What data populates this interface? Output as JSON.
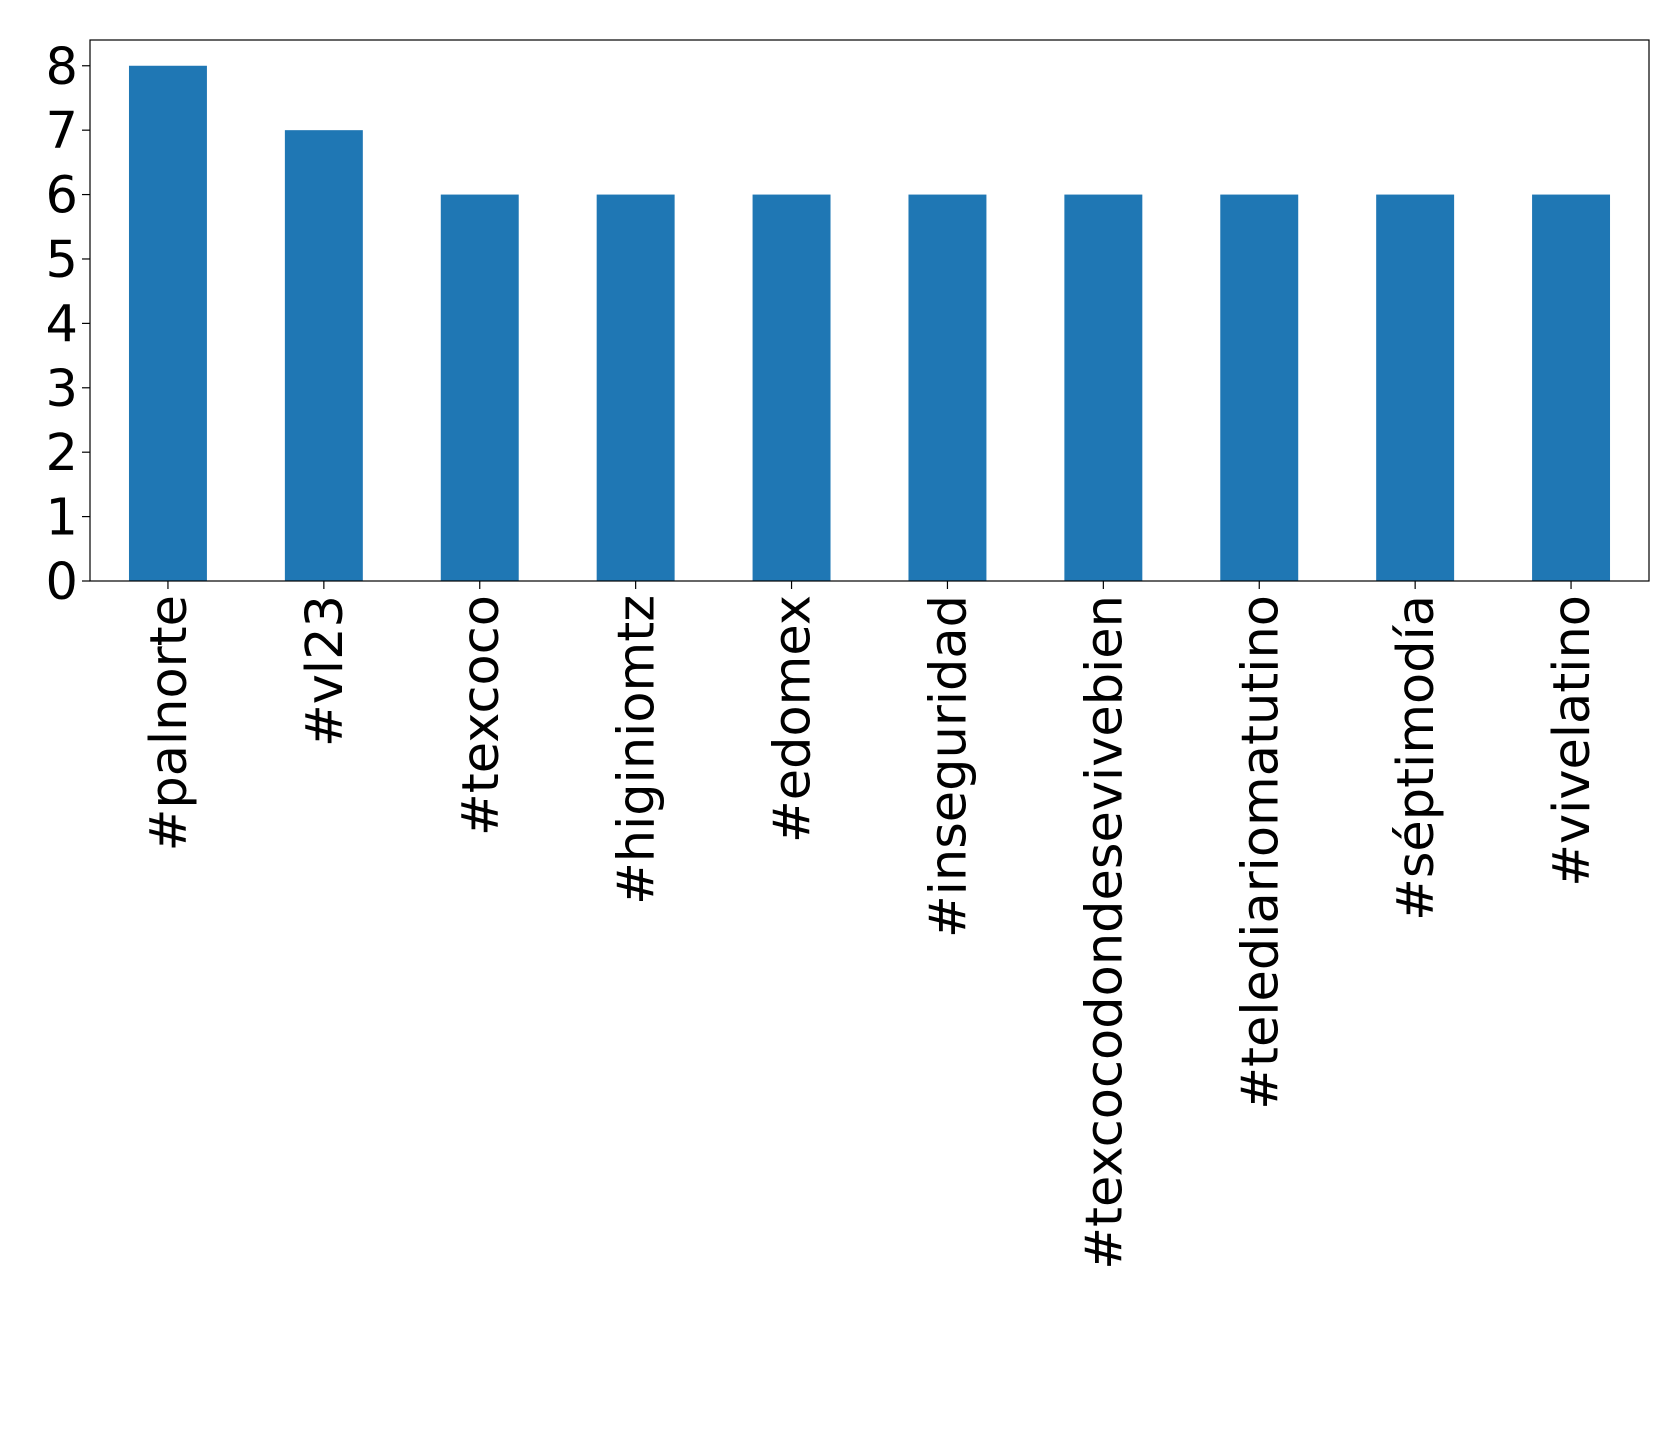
{
  "chart_data": {
    "type": "bar",
    "categories": [
      "#palnorte",
      "#vl23",
      "#texcoco",
      "#higiniomtz",
      "#edomex",
      "#inseguridad",
      "#texcocodondesevivebien",
      "#telediariomatutino",
      "#séptimodía",
      "#vivelatino"
    ],
    "values": [
      8,
      7,
      6,
      6,
      6,
      6,
      6,
      6,
      6,
      6
    ],
    "color": "#1f77b4",
    "ylim": [
      0,
      8.4
    ],
    "yticks": [
      0,
      1,
      2,
      3,
      4,
      5,
      6,
      7,
      8
    ],
    "grid": false
  }
}
